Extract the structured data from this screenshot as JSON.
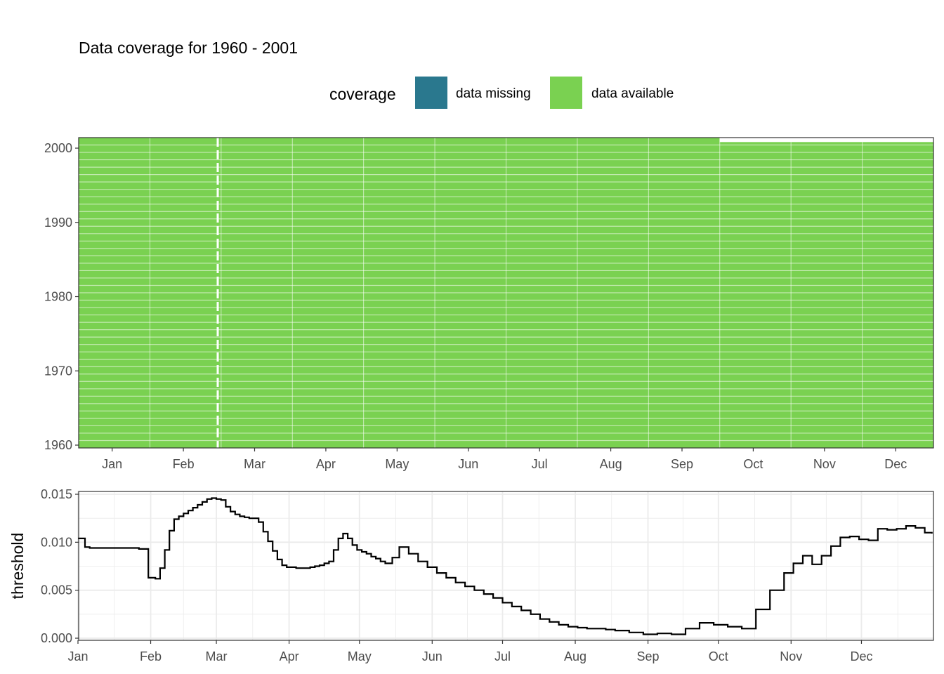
{
  "title": "Data coverage for 1960 - 2001",
  "legend": {
    "title": "coverage",
    "placement": "top",
    "items": [
      {
        "label": "data missing",
        "color": "#2A788E"
      },
      {
        "label": "data available",
        "color": "#7AD151"
      }
    ]
  },
  "chart_data": [
    {
      "type": "heatmap",
      "title": "",
      "xlabel": "",
      "ylabel": "",
      "x_ticks": [
        "Jan",
        "Feb",
        "Mar",
        "Apr",
        "May",
        "Jun",
        "Jul",
        "Aug",
        "Sep",
        "Oct",
        "Nov",
        "Dec"
      ],
      "y_ticks": [
        1960,
        1970,
        1980,
        1990,
        2000
      ],
      "ylim": [
        1960,
        2001
      ],
      "year_range": [
        1960,
        2001
      ],
      "available_color": "#7AD151",
      "missing_color": "#2A788E",
      "last_year_available_through_month": "Sep",
      "grid": true
    },
    {
      "type": "line",
      "title": "",
      "xlabel": "",
      "ylabel": "threshold",
      "x_ticks": [
        "Jan",
        "Feb",
        "Mar",
        "Apr",
        "May",
        "Jun",
        "Jul",
        "Aug",
        "Sep",
        "Oct",
        "Nov",
        "Dec"
      ],
      "y_ticks": [
        "0.000",
        "0.005",
        "0.010",
        "0.015"
      ],
      "ylim": [
        0,
        0.015
      ],
      "grid": true,
      "series": [
        {
          "color": "#000000",
          "x_day": [
            1,
            4,
            6,
            15,
            27,
            31,
            34,
            36,
            38,
            40,
            42,
            44,
            46,
            48,
            50,
            52,
            54,
            56,
            58,
            60,
            62,
            64,
            66,
            68,
            70,
            72,
            74,
            76,
            78,
            80,
            82,
            84,
            86,
            88,
            90,
            92,
            94,
            96,
            98,
            100,
            102,
            104,
            106,
            108,
            110,
            112,
            114,
            116,
            118,
            120,
            122,
            124,
            126,
            128,
            130,
            132,
            135,
            138,
            142,
            146,
            150,
            154,
            158,
            162,
            166,
            170,
            174,
            178,
            182,
            186,
            190,
            194,
            198,
            202,
            206,
            210,
            214,
            218,
            222,
            226,
            230,
            236,
            242,
            248,
            254,
            260,
            266,
            272,
            278,
            284,
            290,
            296,
            302,
            306,
            310,
            314,
            318,
            322,
            326,
            330,
            334,
            338,
            342,
            346,
            350,
            354,
            358,
            362,
            365
          ],
          "y": [
            0.0104,
            0.0095,
            0.0094,
            0.0094,
            0.0093,
            0.0063,
            0.0062,
            0.0073,
            0.0092,
            0.0112,
            0.0124,
            0.0127,
            0.013,
            0.0133,
            0.0136,
            0.0139,
            0.0142,
            0.0145,
            0.0146,
            0.0145,
            0.0144,
            0.0137,
            0.0132,
            0.0129,
            0.0127,
            0.0126,
            0.0125,
            0.0125,
            0.0121,
            0.0111,
            0.0101,
            0.0091,
            0.0082,
            0.0076,
            0.0074,
            0.0074,
            0.0073,
            0.0073,
            0.0073,
            0.0074,
            0.0075,
            0.0076,
            0.0078,
            0.008,
            0.0092,
            0.0104,
            0.0109,
            0.0104,
            0.0097,
            0.0092,
            0.009,
            0.0088,
            0.0085,
            0.0083,
            0.008,
            0.0078,
            0.0084,
            0.0095,
            0.0088,
            0.008,
            0.0074,
            0.0068,
            0.0063,
            0.0058,
            0.0054,
            0.005,
            0.0046,
            0.0042,
            0.0037,
            0.0033,
            0.0029,
            0.0025,
            0.002,
            0.0017,
            0.0014,
            0.0012,
            0.0011,
            0.001,
            0.001,
            0.0009,
            0.0008,
            0.0006,
            0.0004,
            0.0005,
            0.0004,
            0.001,
            0.0016,
            0.0014,
            0.0012,
            0.001,
            0.003,
            0.005,
            0.0068,
            0.0078,
            0.0086,
            0.0077,
            0.0086,
            0.0096,
            0.0105,
            0.0106,
            0.0103,
            0.0102,
            0.0114,
            0.0113,
            0.0114,
            0.0117,
            0.0115,
            0.011,
            0.0109
          ]
        }
      ]
    }
  ]
}
